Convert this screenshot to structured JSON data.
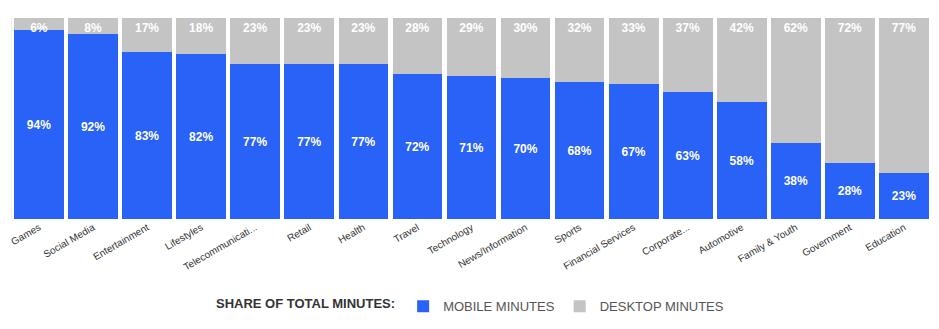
{
  "chart_data": {
    "type": "bar",
    "stacked": true,
    "title": "SHARE OF TOTAL MINUTES:",
    "categories": [
      "Games",
      "Social Media",
      "Entertainment",
      "Lifestyles",
      "Telecommunicati...",
      "Retail",
      "Health",
      "Travel",
      "Technology",
      "News/Information",
      "Sports",
      "Financial Services",
      "Corporate...",
      "Automotive",
      "Family & Youth",
      "Government",
      "Education"
    ],
    "series": [
      {
        "name": "MOBILE MINUTES",
        "color": "#2962f6",
        "values": [
          94,
          92,
          83,
          82,
          77,
          77,
          77,
          72,
          71,
          70,
          68,
          67,
          63,
          58,
          38,
          28,
          23
        ],
        "value_labels": [
          "94%",
          "92%",
          "83%",
          "82%",
          "77%",
          "77%",
          "77%",
          "72%",
          "71%",
          "70%",
          "68%",
          "67%",
          "63%",
          "58%",
          "38%",
          "28%",
          "23%"
        ]
      },
      {
        "name": "DESKTOP MINUTES",
        "color": "#c4c4c4",
        "values": [
          6,
          8,
          17,
          18,
          23,
          23,
          23,
          28,
          29,
          30,
          32,
          33,
          37,
          42,
          62,
          72,
          77
        ],
        "value_labels": [
          "6%",
          "8%",
          "17%",
          "18%",
          "23%",
          "23%",
          "23%",
          "28%",
          "29%",
          "30%",
          "32%",
          "33%",
          "37%",
          "42%",
          "62%",
          "72%",
          "77%"
        ]
      }
    ],
    "ylim": [
      0,
      100
    ],
    "grid": false,
    "data_labels": true,
    "tick_labels": "x",
    "legend": "bottom"
  }
}
